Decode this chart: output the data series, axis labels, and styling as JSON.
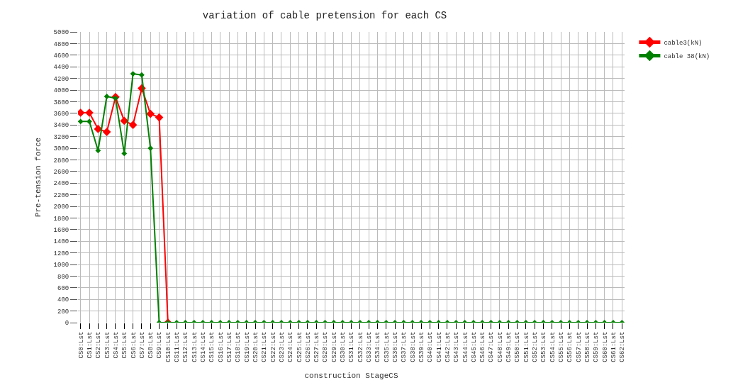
{
  "chart_data": {
    "type": "line",
    "title": "variation of cable pretension for each CS",
    "xlabel": "construction StageCS",
    "ylabel": "Pre-tension force",
    "categories": [
      "CS0:Lst",
      "CS1:Lst",
      "CS2:Lst",
      "CS3:Lst",
      "CS4:Lst",
      "CS5:Lst",
      "CS6:Lst",
      "CS7:Lst",
      "CS8:Lst",
      "CS9:Lst",
      "CS10:Lst",
      "CS11:Lst",
      "CS12:Lst",
      "CS13:Lst",
      "CS14:Lst",
      "CS15:Lst",
      "CS16:Lst",
      "CS17:Lst",
      "CS18:Lst",
      "CS19:Lst",
      "CS20:Lst",
      "CS21:Lst",
      "CS22:Lst",
      "CS23:Lst",
      "CS24:Lst",
      "CS25:Lst",
      "CS26:Lst",
      "CS27:Lst",
      "CS28:Lst",
      "CS29:Lst",
      "CS30:Lst",
      "CS31:Lst",
      "CS32:Lst",
      "CS33:Lst",
      "CS34:Lst",
      "CS35:Lst",
      "CS36:Lst",
      "CS37:Lst",
      "CS38:Lst",
      "CS39:Lst",
      "CS40:Lst",
      "CS41:Lst",
      "CS42:Lst",
      "CS43:Lst",
      "CS44:Lst",
      "CS45:Lst",
      "CS46:Lst",
      "CS47:Lst",
      "CS48:Lst",
      "CS49:Lst",
      "CS50:Lst",
      "CS51:Lst",
      "CS52:Lst",
      "CS53:Lst",
      "CS54:Lst",
      "CS55:Lst",
      "CS56:Lst",
      "CS57:Lst",
      "CS58:Lst",
      "CS59:Lst",
      "CS60:Lst",
      "CS61:Lst",
      "CS62:Lst"
    ],
    "series": [
      {
        "name": "cable3(kN)",
        "color": "#ff0000",
        "values": [
          3610,
          3610,
          3330,
          3280,
          3880,
          3470,
          3400,
          4030,
          3590,
          3530,
          0,
          null,
          null,
          null,
          null,
          null,
          null,
          null,
          null,
          null,
          null,
          null,
          null,
          null,
          null,
          null,
          null,
          null,
          null,
          null,
          null,
          null,
          null,
          null,
          null,
          null,
          null,
          null,
          null,
          null,
          null,
          null,
          null,
          null,
          null,
          null,
          null,
          null,
          null,
          null,
          null,
          null,
          null,
          null,
          null,
          null,
          null,
          null,
          null,
          null,
          null,
          null,
          null
        ]
      },
      {
        "name": "cable 38(kN)",
        "color": "#008000",
        "values": [
          3460,
          3460,
          2960,
          3890,
          3860,
          2910,
          4280,
          4260,
          3000,
          0,
          0,
          0,
          0,
          0,
          0,
          0,
          0,
          0,
          0,
          0,
          0,
          0,
          0,
          0,
          0,
          0,
          0,
          0,
          0,
          0,
          0,
          0,
          0,
          0,
          0,
          0,
          0,
          0,
          0,
          0,
          0,
          0,
          0,
          0,
          0,
          0,
          0,
          0,
          0,
          0,
          0,
          0,
          0,
          0,
          0,
          0,
          0,
          0,
          0,
          0,
          0,
          0,
          0
        ]
      }
    ],
    "ylim": [
      0,
      5000
    ],
    "yticks": [
      0,
      200,
      400,
      600,
      800,
      1000,
      1200,
      1400,
      1600,
      1800,
      2000,
      2200,
      2400,
      2600,
      2800,
      3000,
      3200,
      3400,
      3600,
      3800,
      4000,
      4200,
      4400,
      4600,
      4800,
      5000
    ],
    "grid": true,
    "legend": "top right",
    "marker": "diamond",
    "line_style": "solid"
  }
}
